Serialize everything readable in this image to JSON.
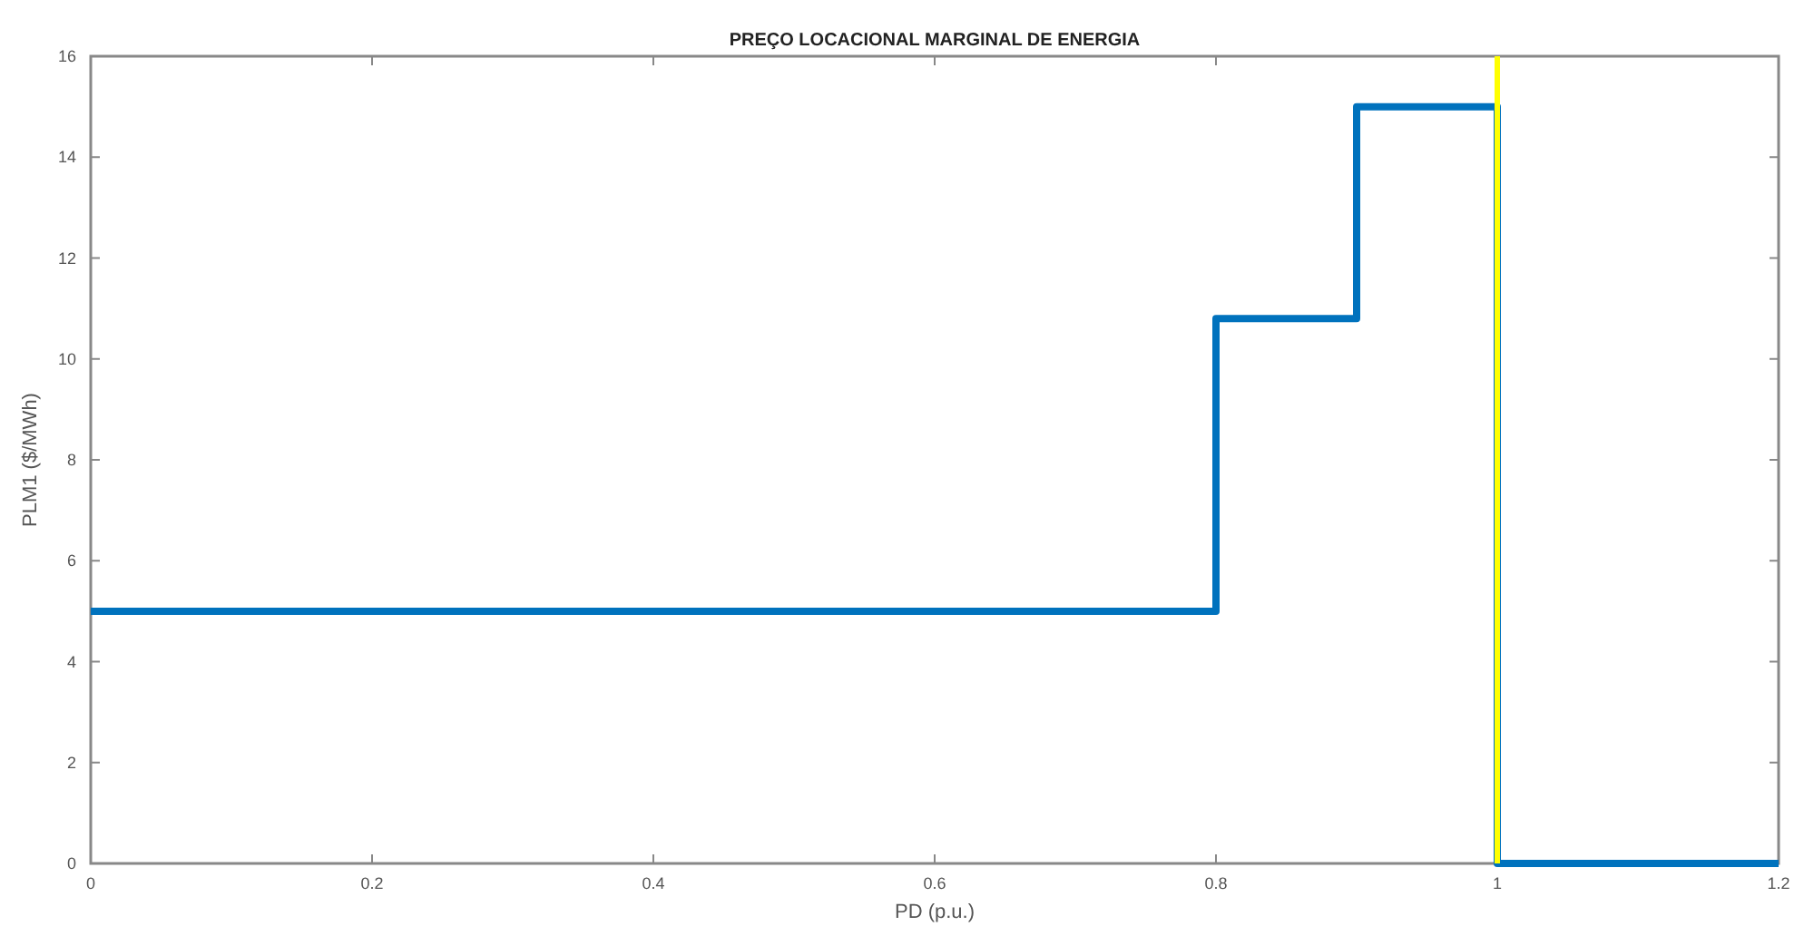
{
  "chart_data": {
    "type": "step",
    "title": "PREÇO LOCACIONAL MARGINAL DE ENERGIA",
    "xlabel": "PD (p.u.)",
    "ylabel": "PLM1 ($/MWh)",
    "x": [
      0,
      0.8,
      0.9,
      1,
      1.2
    ],
    "series": [
      {
        "color": "#0072bd",
        "values": [
          5,
          10.8,
          15,
          0,
          0
        ]
      }
    ],
    "xlim": [
      0,
      1.2
    ],
    "xticks": [
      0,
      0.2,
      0.4,
      0.6,
      0.8,
      1,
      1.2
    ],
    "ylim": [
      0,
      16
    ],
    "yticks": [
      0,
      2,
      4,
      6,
      8,
      10,
      12,
      14,
      16
    ],
    "ref_lines": [
      {
        "axis": "x",
        "value": 1,
        "color": "#ffff00"
      }
    ],
    "grid": false
  }
}
